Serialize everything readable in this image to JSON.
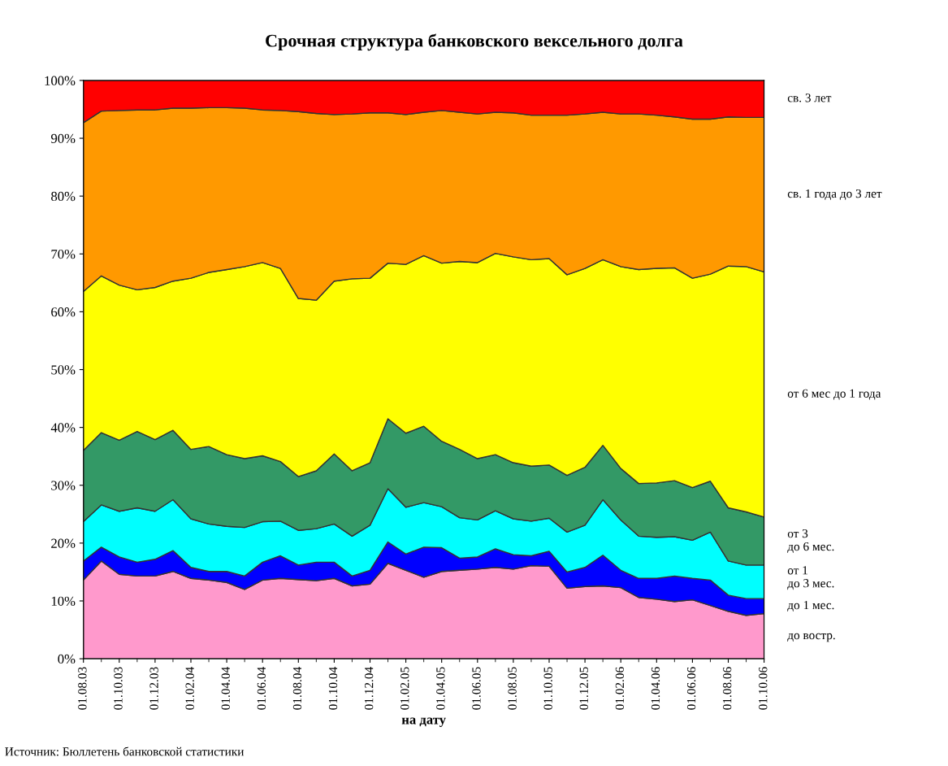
{
  "chart_data": {
    "type": "area",
    "stacked": true,
    "title": "Срочная структура банковского вексельного долга",
    "xlabel": "на дату",
    "annotations": [
      "Источник: Бюллетень банковской статистики"
    ],
    "categories": [
      "01.08.03",
      null,
      "01.10.03",
      null,
      "01.12.03",
      null,
      "01.02.04",
      null,
      "01.04.04",
      null,
      "01.06.04",
      null,
      "01.08.04",
      null,
      "01.10.04",
      null,
      "01.12.04",
      null,
      "01.02.05",
      null,
      "01.04.05",
      null,
      "01.06.05",
      null,
      "01.08.05",
      null,
      "01.10.05",
      null,
      "01.12.05",
      null,
      "01.02.06",
      null,
      "01.04.06",
      null,
      "01.06.06",
      null,
      "01.08.06",
      null,
      "01.10.06"
    ],
    "ylim": [
      0,
      100
    ],
    "yticks": [
      {
        "value": 0,
        "label": "0%"
      },
      {
        "value": 10,
        "label": "10%"
      },
      {
        "value": 20,
        "label": "20%"
      },
      {
        "value": 30,
        "label": "30%"
      },
      {
        "value": 40,
        "label": "40%"
      },
      {
        "value": 50,
        "label": "50%"
      },
      {
        "value": 60,
        "label": "60%"
      },
      {
        "value": 70,
        "label": "70%"
      },
      {
        "value": 80,
        "label": "80%"
      },
      {
        "value": 90,
        "label": "90%"
      },
      {
        "value": 100,
        "label": "100%"
      }
    ],
    "grid": false,
    "legend": false,
    "series": [
      {
        "name": "до востр.",
        "color": "#ff99cc",
        "values": [
          13.6,
          16.9,
          14.6,
          14.3,
          14.3,
          15.1,
          13.9,
          13.6,
          13.2,
          12.0,
          13.6,
          13.9,
          13.7,
          13.5,
          13.9,
          12.6,
          12.9,
          16.5,
          15.3,
          14.1,
          15.1,
          15.3,
          15.5,
          15.8,
          15.5,
          16.1,
          16.0,
          12.2,
          12.5,
          12.6,
          12.3,
          10.6,
          10.3,
          9.9,
          10.2,
          9.2,
          8.2,
          7.5,
          7.8
        ]
      },
      {
        "name": "до 1 мес.",
        "color": "#0000ff",
        "values": [
          3.3,
          2.4,
          3.0,
          2.4,
          2.9,
          3.6,
          1.9,
          1.5,
          1.9,
          2.3,
          3.1,
          3.9,
          2.5,
          3.2,
          2.8,
          1.7,
          2.4,
          3.7,
          2.8,
          5.2,
          4.1,
          2.1,
          2.1,
          3.2,
          2.5,
          1.7,
          2.6,
          2.8,
          3.3,
          5.3,
          3.0,
          3.3,
          3.6,
          4.4,
          3.7,
          4.4,
          2.8,
          2.9,
          2.6
        ]
      },
      {
        "name": "от 1\nдо 3 мес.",
        "color": "#00ffff",
        "values": [
          6.8,
          7.3,
          7.9,
          9.4,
          8.3,
          8.8,
          8.4,
          8.2,
          7.8,
          8.4,
          7.0,
          6.0,
          6.0,
          5.8,
          6.6,
          6.9,
          7.8,
          9.2,
          8.1,
          7.7,
          7.1,
          7.0,
          6.4,
          6.6,
          6.2,
          6.0,
          5.7,
          6.9,
          7.3,
          9.6,
          8.7,
          7.3,
          7.1,
          6.8,
          6.6,
          8.3,
          5.9,
          5.8,
          5.8
        ]
      },
      {
        "name": "от 3\nдо 6 мес.",
        "color": "#339966",
        "values": [
          12.3,
          12.5,
          12.3,
          13.2,
          12.4,
          12.0,
          12.0,
          13.4,
          12.4,
          11.9,
          11.4,
          10.3,
          9.3,
          10.0,
          12.1,
          11.3,
          10.8,
          12.1,
          12.8,
          13.2,
          11.3,
          11.8,
          10.6,
          9.7,
          9.7,
          9.5,
          9.2,
          9.8,
          10.0,
          9.4,
          8.9,
          9.1,
          9.4,
          9.7,
          9.1,
          8.8,
          9.2,
          9.2,
          8.3
        ]
      },
      {
        "name": "от 6 мес до 1 года",
        "color": "#ffff00",
        "values": [
          27.5,
          27.1,
          26.8,
          24.5,
          26.3,
          25.8,
          29.6,
          30.1,
          32.0,
          33.2,
          33.4,
          33.4,
          30.8,
          29.5,
          29.9,
          33.2,
          31.9,
          26.9,
          29.2,
          29.5,
          30.8,
          32.5,
          33.9,
          34.8,
          35.6,
          35.7,
          35.7,
          34.7,
          34.4,
          32.1,
          34.9,
          37.0,
          37.1,
          36.8,
          36.2,
          35.8,
          41.8,
          42.4,
          42.4
        ]
      },
      {
        "name": "св. 1 года до 3 лет",
        "color": "#ff9900",
        "values": [
          29.2,
          28.5,
          30.2,
          31.1,
          30.7,
          29.9,
          29.4,
          28.5,
          28.0,
          27.4,
          26.4,
          27.3,
          32.3,
          32.3,
          28.8,
          28.5,
          28.6,
          26.0,
          25.9,
          24.8,
          26.4,
          25.8,
          25.7,
          24.4,
          24.9,
          25.0,
          24.8,
          27.6,
          26.7,
          25.5,
          26.4,
          26.9,
          26.5,
          26.1,
          27.5,
          26.8,
          25.8,
          25.8,
          26.7
        ]
      },
      {
        "name": "св. 3 лет",
        "color": "#ff0000",
        "values": [
          7.3,
          5.3,
          5.2,
          5.1,
          5.1,
          4.8,
          4.8,
          4.7,
          4.7,
          4.8,
          5.1,
          5.2,
          5.4,
          5.7,
          5.9,
          5.8,
          5.6,
          5.6,
          5.9,
          5.5,
          5.2,
          5.5,
          5.8,
          5.5,
          5.6,
          6.0,
          6.0,
          6.0,
          5.8,
          5.5,
          5.8,
          5.8,
          6.0,
          6.3,
          6.7,
          6.7,
          6.3,
          6.4,
          6.4
        ]
      }
    ]
  }
}
